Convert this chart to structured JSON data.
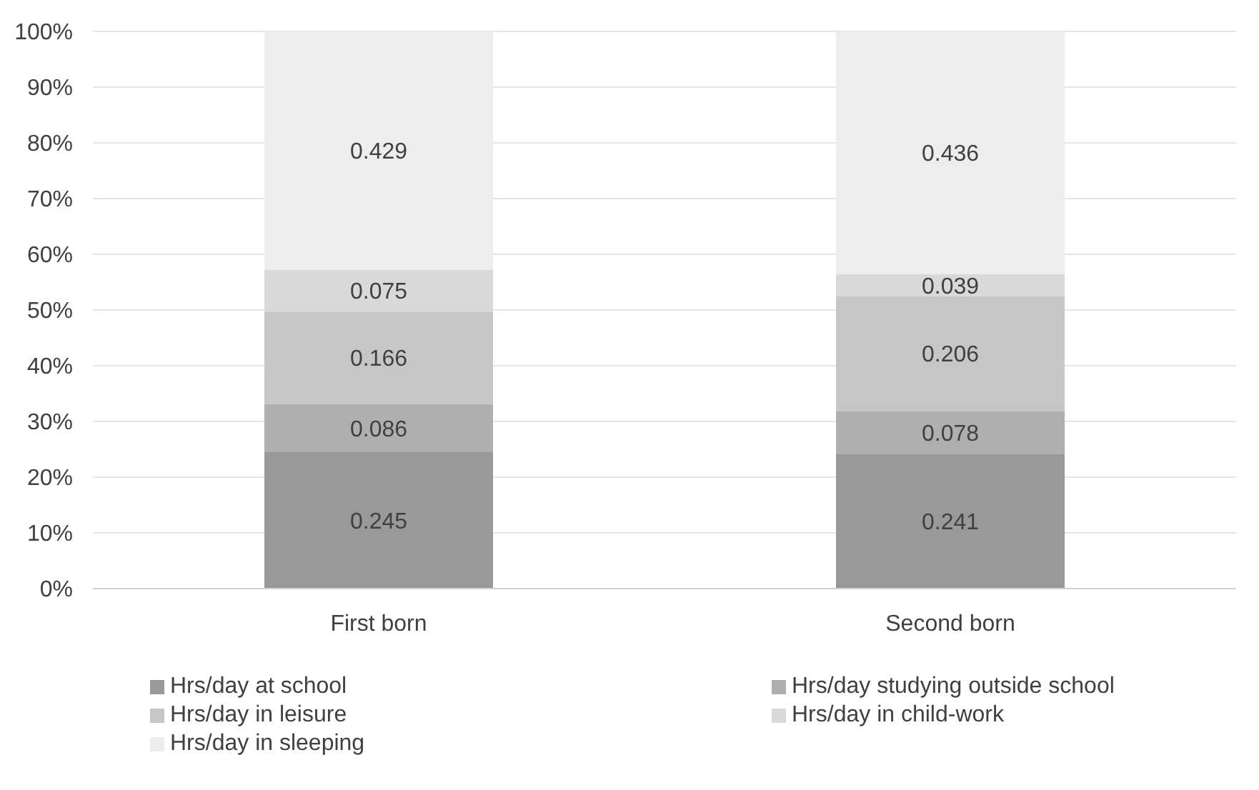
{
  "chart_data": {
    "type": "bar",
    "stacked": true,
    "categories": [
      "First born",
      "Second born"
    ],
    "series": [
      {
        "name": "Hrs/day at school",
        "color": "#999999",
        "values": [
          0.245,
          0.241
        ]
      },
      {
        "name": "Hrs/day studying outside school",
        "color": "#afafaf",
        "values": [
          0.086,
          0.078
        ]
      },
      {
        "name": "Hrs/day in leisure",
        "color": "#c6c6c6",
        "values": [
          0.166,
          0.206
        ]
      },
      {
        "name": "Hrs/day in child-work",
        "color": "#d9d9d9",
        "values": [
          0.075,
          0.039
        ]
      },
      {
        "name": "Hrs/day in sleeping",
        "color": "#ededed",
        "values": [
          0.429,
          0.436
        ]
      }
    ],
    "ylim": [
      0,
      1
    ],
    "yticks": [
      {
        "value": 0,
        "label": "0%"
      },
      {
        "value": 0.1,
        "label": "10%"
      },
      {
        "value": 0.2,
        "label": "20%"
      },
      {
        "value": 0.3,
        "label": "30%"
      },
      {
        "value": 0.4,
        "label": "40%"
      },
      {
        "value": 0.5,
        "label": "50%"
      },
      {
        "value": 0.6,
        "label": "60%"
      },
      {
        "value": 0.7,
        "label": "70%"
      },
      {
        "value": 0.8,
        "label": "80%"
      },
      {
        "value": 0.9,
        "label": "90%"
      },
      {
        "value": 1,
        "label": "100%"
      }
    ],
    "grid": "y",
    "legend": "bottom",
    "data_labels": true
  }
}
